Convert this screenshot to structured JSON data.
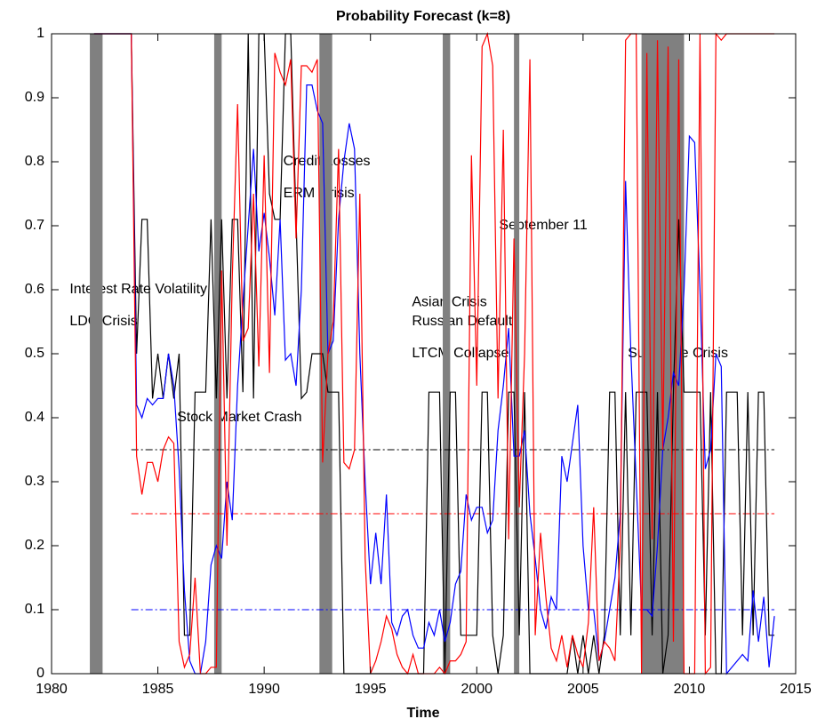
{
  "chart_data": {
    "type": "line",
    "title": "Probability Forecast (k=8)",
    "xlabel": "Time",
    "xlim": [
      1980,
      2015
    ],
    "ylim": [
      0,
      1
    ],
    "xticks": [
      1980,
      1985,
      1990,
      1995,
      2000,
      2005,
      2010,
      2015
    ],
    "yticks": [
      0,
      0.1,
      0.2,
      0.3,
      0.4,
      0.5,
      0.6,
      0.7,
      0.8,
      0.9,
      1
    ],
    "grid": false,
    "x": [
      1982,
      1982.25,
      1982.5,
      1982.75,
      1983,
      1983.25,
      1983.5,
      1983.75,
      1984,
      1984.25,
      1984.5,
      1984.75,
      1985,
      1985.25,
      1985.5,
      1985.75,
      1986,
      1986.25,
      1986.5,
      1986.75,
      1987,
      1987.25,
      1987.5,
      1987.75,
      1988,
      1988.25,
      1988.5,
      1988.75,
      1989,
      1989.25,
      1989.5,
      1989.75,
      1990,
      1990.25,
      1990.5,
      1990.75,
      1991,
      1991.25,
      1991.5,
      1991.75,
      1992,
      1992.25,
      1992.5,
      1992.75,
      1993,
      1993.25,
      1993.5,
      1993.75,
      1994,
      1994.25,
      1994.5,
      1994.75,
      1995,
      1995.25,
      1995.5,
      1995.75,
      1996,
      1996.25,
      1996.5,
      1996.75,
      1997,
      1997.25,
      1997.5,
      1997.75,
      1998,
      1998.25,
      1998.5,
      1998.75,
      1999,
      1999.25,
      1999.5,
      1999.75,
      2000,
      2000.25,
      2000.5,
      2000.75,
      2001,
      2001.25,
      2001.5,
      2001.75,
      2002,
      2002.25,
      2002.5,
      2002.75,
      2003,
      2003.25,
      2003.5,
      2003.75,
      2004,
      2004.25,
      2004.5,
      2004.75,
      2005,
      2005.25,
      2005.5,
      2005.75,
      2006,
      2006.25,
      2006.5,
      2006.75,
      2007,
      2007.25,
      2007.5,
      2007.75,
      2008,
      2008.25,
      2008.5,
      2008.75,
      2009,
      2009.25,
      2009.5,
      2009.75,
      2010,
      2010.25,
      2010.5,
      2010.75,
      2011,
      2011.25,
      2011.5,
      2011.75,
      2012,
      2012.25,
      2012.5,
      2012.75,
      2013,
      2013.25,
      2013.5,
      2013.75,
      2014
    ],
    "series": [
      {
        "color": "#000000",
        "values": [
          1,
          1,
          1,
          1,
          1,
          1,
          1,
          1,
          0.5,
          0.71,
          0.71,
          0.43,
          0.5,
          0.43,
          0.5,
          0.43,
          0.5,
          0.06,
          0.06,
          0.44,
          0.44,
          0.44,
          0.71,
          0.43,
          0.71,
          0.43,
          0.71,
          0.71,
          0.44,
          1,
          0.43,
          1,
          1,
          0.75,
          0.71,
          0.71,
          1,
          1,
          0.71,
          0.43,
          0.44,
          0.5,
          0.5,
          0.5,
          0.44,
          0.44,
          0.44,
          0,
          0,
          0,
          0,
          0,
          0,
          0,
          0,
          0,
          0,
          0,
          0,
          0,
          0,
          0,
          0,
          0.44,
          0.44,
          0.44,
          0,
          0.44,
          0.44,
          0.06,
          0.06,
          0.06,
          0.06,
          0.44,
          0.44,
          0.06,
          0,
          0.06,
          0.44,
          0.44,
          0.06,
          0.44,
          0,
          0,
          0,
          0,
          0,
          0,
          0,
          0,
          0.06,
          0,
          0.06,
          0,
          0.06,
          0,
          0.06,
          0.44,
          0.44,
          0.06,
          0.44,
          0.06,
          0.44,
          0.44,
          0.44,
          0.06,
          0.44,
          0,
          0.06,
          0.44,
          0.71,
          0.44,
          0.44,
          0.44,
          0.44,
          0.06,
          0.44,
          0,
          0,
          0.44,
          0.44,
          0.44,
          0.06,
          0.44,
          0.06,
          0.44,
          0.44,
          0.06,
          0.06
        ]
      },
      {
        "color": "#0000ff",
        "values": [
          1,
          1,
          1,
          1,
          1,
          1,
          1,
          1,
          0.42,
          0.4,
          0.43,
          0.42,
          0.43,
          0.43,
          0.5,
          0.45,
          0.32,
          0.13,
          0.02,
          0,
          0,
          0.05,
          0.17,
          0.2,
          0.18,
          0.3,
          0.24,
          0.45,
          0.58,
          0.7,
          0.82,
          0.66,
          0.72,
          0.65,
          0.56,
          0.71,
          0.49,
          0.5,
          0.45,
          0.6,
          0.92,
          0.92,
          0.88,
          0.86,
          0.5,
          0.52,
          0.71,
          0.8,
          0.86,
          0.82,
          0.5,
          0.3,
          0.14,
          0.22,
          0.14,
          0.28,
          0.08,
          0.06,
          0.09,
          0.1,
          0.06,
          0.04,
          0.04,
          0.08,
          0.06,
          0.1,
          0.05,
          0.08,
          0.14,
          0.16,
          0.28,
          0.24,
          0.26,
          0.26,
          0.22,
          0.24,
          0.38,
          0.45,
          0.54,
          0.34,
          0.34,
          0.38,
          0.25,
          0.18,
          0.1,
          0.07,
          0.12,
          0.1,
          0.34,
          0.3,
          0.36,
          0.42,
          0.2,
          0.1,
          0.1,
          0.02,
          0.05,
          0.1,
          0.15,
          0.25,
          0.77,
          0.5,
          0.3,
          0.1,
          0.1,
          0.09,
          0.2,
          0.35,
          0.4,
          0.47,
          0.45,
          0.6,
          0.84,
          0.83,
          0.6,
          0.32,
          0.35,
          0.5,
          0.48,
          0,
          0.01,
          0.02,
          0.03,
          0.02,
          0.13,
          0.05,
          0.12,
          0.01,
          0.09
        ]
      },
      {
        "color": "#ff0000",
        "values": [
          1,
          1,
          1,
          1,
          1,
          1,
          1,
          1,
          0.34,
          0.28,
          0.33,
          0.33,
          0.3,
          0.35,
          0.37,
          0.36,
          0.05,
          0.01,
          0.03,
          0.15,
          0,
          0,
          0.01,
          0.01,
          0.63,
          0.2,
          0.62,
          0.89,
          0.52,
          0.54,
          0.75,
          0.48,
          0.81,
          0.47,
          0.97,
          0.94,
          0.92,
          0.96,
          0.68,
          0.95,
          0.95,
          0.94,
          0.96,
          0.33,
          0.5,
          0.55,
          0.82,
          0.33,
          0.32,
          0.35,
          0.75,
          0.18,
          0,
          0.02,
          0.05,
          0.09,
          0.07,
          0.03,
          0.01,
          0,
          0.03,
          0,
          0,
          0,
          0,
          0.01,
          0,
          0.02,
          0.02,
          0.03,
          0.05,
          0.81,
          0.45,
          0.98,
          1,
          0.95,
          0.43,
          0.85,
          0.21,
          0.68,
          0.26,
          0.5,
          0.96,
          0.06,
          0.22,
          0.12,
          0.04,
          0.02,
          0.06,
          0.01,
          0.06,
          0.03,
          0.01,
          0.08,
          0.26,
          0.02,
          0.05,
          0.04,
          0.02,
          0.2,
          0.99,
          1,
          1,
          0,
          0.97,
          0.21,
          0.99,
          0.35,
          0.98,
          0.05,
          0.96,
          0,
          0,
          0,
          1,
          0,
          0.01,
          1,
          0.99,
          1,
          1,
          1,
          1,
          1,
          1,
          1,
          1,
          1,
          1
        ]
      }
    ],
    "reference_lines": [
      {
        "value": 0.35,
        "color": "#000000",
        "xlim": [
          1983.75,
          2014
        ]
      },
      {
        "value": 0.25,
        "color": "#ff0000",
        "xlim": [
          1983.75,
          2014
        ]
      },
      {
        "value": 0.1,
        "color": "#0000ff",
        "xlim": [
          1983.75,
          2014
        ]
      }
    ],
    "shaded_color": "#808080",
    "shaded_periods": [
      [
        1981.8,
        1982.4
      ],
      [
        1987.65,
        1988.0
      ],
      [
        1992.6,
        1993.2
      ],
      [
        1998.4,
        1998.75
      ],
      [
        2001.75,
        2002.0
      ],
      [
        2007.75,
        2009.75
      ]
    ],
    "annotations": [
      {
        "text": "Interest Rate Volatility",
        "x": 1980.85,
        "y": 0.6
      },
      {
        "text": "LDC Crisis",
        "x": 1980.85,
        "y": 0.55
      },
      {
        "text": "Stock Market Crash",
        "x": 1985.9,
        "y": 0.4
      },
      {
        "text": "Credit Losses",
        "x": 1990.9,
        "y": 0.8
      },
      {
        "text": "ERM Crisis",
        "x": 1990.9,
        "y": 0.75
      },
      {
        "text": "September 11",
        "x": 2001.05,
        "y": 0.7
      },
      {
        "text": "Asian Crisis",
        "x": 1996.95,
        "y": 0.58
      },
      {
        "text": "Russian Default",
        "x": 1996.95,
        "y": 0.55
      },
      {
        "text": "LTCM Collapse",
        "x": 1996.95,
        "y": 0.5
      },
      {
        "text": "Subprime Crisis",
        "x": 2007.1,
        "y": 0.5
      }
    ]
  }
}
